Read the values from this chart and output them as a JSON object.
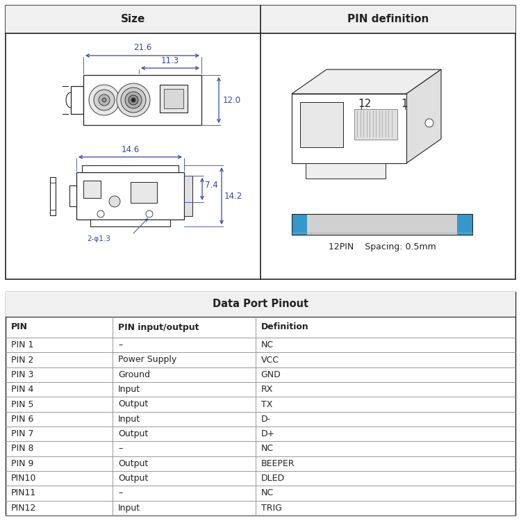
{
  "bg_color": "#f0f0f0",
  "white": "#ffffff",
  "border_color": "#444444",
  "blue_dim": "#3399cc",
  "dim_color": "#3344aa",
  "top_section": {
    "left_header": "Size",
    "right_header": "PIN definition",
    "dims_top": [
      "21.6",
      "11.3",
      "12.0"
    ],
    "dims_bottom": [
      "14.6",
      "7.4",
      "14.2",
      "2-φ1.3"
    ]
  },
  "table": {
    "title": "Data Port Pinout",
    "headers": [
      "PIN",
      "PIN input/output",
      "Definition"
    ],
    "rows": [
      [
        "PIN 1",
        "–",
        "NC"
      ],
      [
        "PIN 2",
        "Power Supply",
        "VCC"
      ],
      [
        "PIN 3",
        "Ground",
        "GND"
      ],
      [
        "PIN 4",
        "Input",
        "RX"
      ],
      [
        "PIN 5",
        "Output",
        "TX"
      ],
      [
        "PIN 6",
        "Input",
        "D-"
      ],
      [
        "PIN 7",
        "Output",
        "D+"
      ],
      [
        "PIN 8",
        "–",
        "NC"
      ],
      [
        "PIN 9",
        "Output",
        "BEEPER"
      ],
      [
        "PIN10",
        "Output",
        "DLED"
      ],
      [
        "PIN11",
        "–",
        "NC"
      ],
      [
        "PIN12",
        "Input",
        "TRIG"
      ]
    ]
  },
  "connector_label": "12PIN    Spacing: 0.5mm"
}
